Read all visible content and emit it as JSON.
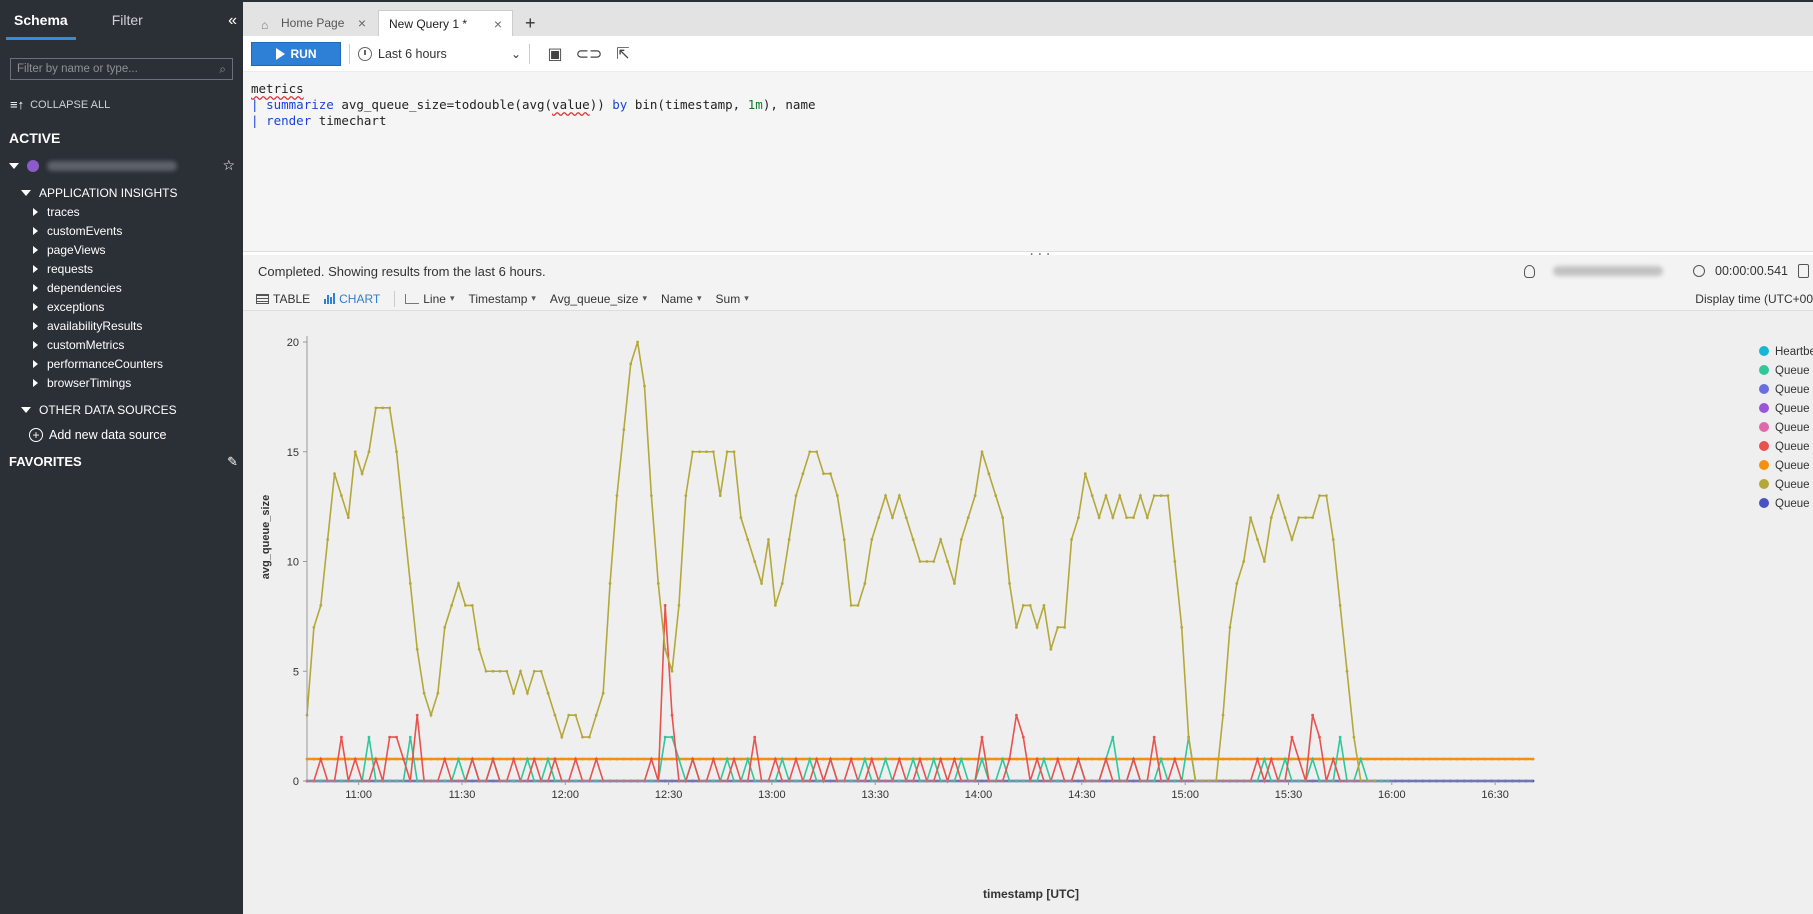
{
  "sidebar": {
    "tabs": [
      {
        "label": "Schema"
      },
      {
        "label": "Filter"
      }
    ],
    "filter_placeholder": "Filter by name or type...",
    "collapse_all": "COLLAPSE ALL",
    "active_title": "ACTIVE",
    "app_insights": "APPLICATION INSIGHTS",
    "tables": [
      "traces",
      "customEvents",
      "pageViews",
      "requests",
      "dependencies",
      "exceptions",
      "availabilityResults",
      "customMetrics",
      "performanceCounters",
      "browserTimings"
    ],
    "other_sources": "OTHER DATA SOURCES",
    "add_source": "Add new data source",
    "favorites": "FAVORITES"
  },
  "tabs": {
    "home": "Home Page",
    "query": "New Query 1 *"
  },
  "toolbar": {
    "run_label": "RUN",
    "time_range": "Last 6 hours"
  },
  "query": {
    "line1": "metrics",
    "line2_kw": "summarize",
    "line2_a": " avg_queue_size=todouble(avg(",
    "line2_value": "value",
    "line2_b": ")) ",
    "line2_by": "by",
    "line2_c": " bin(timestamp, ",
    "line2_num": "1m",
    "line2_d": "), name",
    "line3_kw": "render",
    "line3_rest": " timechart"
  },
  "status": {
    "message": "Completed. Showing results from the last 6 hours.",
    "duration": "00:00:00.541"
  },
  "result_toolbar": {
    "table": "TABLE",
    "chart": "CHART",
    "line": "Line",
    "timestamp": "Timestamp",
    "avg_queue_size": "Avg_queue_size",
    "name": "Name",
    "sum": "Sum",
    "display_time": "Display time (UTC+00"
  },
  "chart_data": {
    "type": "line",
    "xlabel": "timestamp [UTC]",
    "ylabel": "avg_queue_size",
    "ylim": [
      0,
      20
    ],
    "yticks": [
      0,
      5,
      10,
      15,
      20
    ],
    "xticks": [
      "11:00",
      "11:30",
      "12:00",
      "12:30",
      "13:00",
      "13:30",
      "14:00",
      "14:30",
      "15:00",
      "15:30",
      "16:00",
      "16:30"
    ],
    "x_range_minutes": [
      -15,
      341
    ],
    "legend": [
      {
        "name": "Heartbe",
        "color": "#17b6d6"
      },
      {
        "name": "Queue",
        "color": "#2fc89a"
      },
      {
        "name": "Queue",
        "color": "#6a6ee0"
      },
      {
        "name": "Queue",
        "color": "#9a55d8"
      },
      {
        "name": "Queue",
        "color": "#e06aa8"
      },
      {
        "name": "Queue",
        "color": "#e8524f"
      },
      {
        "name": "Queue",
        "color": "#f5900f"
      },
      {
        "name": "Queue",
        "color": "#b5a83a"
      },
      {
        "name": "Queue",
        "color": "#4a52c2"
      }
    ],
    "series": [
      {
        "name": "gold",
        "color": "#b5a83a",
        "start_minute": -15,
        "values": [
          3,
          7,
          8,
          11,
          14,
          13,
          12,
          15,
          14,
          15,
          17,
          17,
          17,
          15,
          12,
          9,
          6,
          4,
          3,
          4,
          7,
          8,
          9,
          8,
          8,
          6,
          5,
          5,
          5,
          5,
          4,
          5,
          4,
          5,
          5,
          4,
          3,
          2,
          3,
          3,
          2,
          2,
          3,
          4,
          9,
          13,
          16,
          19,
          20,
          18,
          13,
          9,
          6,
          5,
          8,
          13,
          15,
          15,
          15,
          15,
          13,
          15,
          15,
          12,
          11,
          10,
          9,
          11,
          8,
          9,
          11,
          13,
          14,
          15,
          15,
          14,
          14,
          13,
          11,
          8,
          8,
          9,
          11,
          12,
          13,
          12,
          13,
          12,
          11,
          10,
          10,
          10,
          11,
          10,
          9,
          11,
          12,
          13,
          15,
          14,
          13,
          12,
          9,
          7,
          8,
          8,
          7,
          8,
          6,
          7,
          7,
          11,
          12,
          14,
          13,
          12,
          13,
          12,
          13,
          12,
          12,
          13,
          12,
          13,
          13,
          13,
          10,
          7,
          2,
          0,
          0,
          0,
          0,
          3,
          7,
          9,
          10,
          12,
          11,
          10,
          12,
          13,
          12,
          11,
          12,
          12,
          12,
          13,
          13,
          11,
          8,
          5,
          2,
          0,
          0,
          0
        ]
      },
      {
        "name": "orange",
        "color": "#f5900f",
        "start_minute": -15,
        "constant": 1,
        "end_minute": 341
      },
      {
        "name": "red",
        "color": "#e8524f",
        "start_minute": -15,
        "values": [
          0,
          0,
          1,
          0,
          0,
          2,
          0,
          1,
          0,
          0,
          1,
          0,
          2,
          2,
          1,
          0,
          3,
          0,
          0,
          0,
          1,
          0,
          0,
          0,
          1,
          0,
          0,
          1,
          0,
          0,
          1,
          0,
          0,
          1,
          0,
          0,
          1,
          0,
          0,
          1,
          0,
          0,
          1,
          0,
          0,
          0,
          0,
          0,
          0,
          0,
          1,
          0,
          8,
          3,
          0,
          0,
          1,
          0,
          0,
          1,
          0,
          0,
          1,
          0,
          0,
          2,
          0,
          0,
          1,
          0,
          0,
          1,
          0,
          0,
          1,
          0,
          1,
          0,
          0,
          1,
          0,
          0,
          1,
          0,
          0,
          0,
          1,
          0,
          0,
          1,
          0,
          0,
          1,
          0,
          1,
          0,
          0,
          0,
          2,
          0,
          0,
          0,
          1,
          3,
          2,
          0,
          1,
          0,
          0,
          1,
          0,
          0,
          1,
          0,
          0,
          0,
          1,
          0,
          0,
          0,
          1,
          0,
          0,
          2,
          0,
          0,
          1,
          0,
          0,
          0,
          0,
          0,
          0,
          0,
          0,
          0,
          0,
          0,
          1,
          0,
          1,
          0,
          0,
          2,
          1,
          0,
          3,
          2,
          0,
          1,
          0,
          0,
          0,
          0,
          0,
          0
        ]
      },
      {
        "name": "green",
        "color": "#2fc89a",
        "start_minute": -15,
        "values": [
          0,
          0,
          0,
          0,
          0,
          0,
          0,
          0,
          0,
          2,
          0,
          0,
          0,
          0,
          0,
          2,
          0,
          0,
          0,
          0,
          0,
          0,
          1,
          0,
          1,
          0,
          0,
          1,
          0,
          0,
          0,
          0,
          1,
          0,
          0,
          1,
          0,
          0,
          0,
          0,
          0,
          0,
          0,
          0,
          0,
          0,
          0,
          0,
          0,
          0,
          0,
          0,
          2,
          2,
          1,
          0,
          1,
          0,
          0,
          0,
          0,
          1,
          0,
          0,
          1,
          0,
          0,
          0,
          0,
          1,
          0,
          0,
          0,
          1,
          0,
          0,
          1,
          0,
          0,
          0,
          0,
          1,
          0,
          0,
          1,
          0,
          0,
          0,
          1,
          0,
          0,
          1,
          0,
          0,
          0,
          1,
          0,
          0,
          1,
          0,
          0,
          1,
          0,
          0,
          0,
          0,
          0,
          1,
          0,
          0,
          0,
          0,
          1,
          0,
          0,
          0,
          1,
          2,
          0,
          0,
          1,
          0,
          0,
          0,
          1,
          0,
          0,
          0,
          2,
          0,
          0,
          0,
          0,
          0,
          0,
          0,
          0,
          0,
          0,
          1,
          0,
          0,
          1,
          0,
          0,
          0,
          1,
          0,
          0,
          0,
          2,
          0,
          0,
          1,
          0,
          0,
          0,
          0
        ]
      },
      {
        "name": "blue",
        "color": "#4a52c2",
        "start_minute": -15,
        "constant": 0,
        "end_minute": 341
      }
    ]
  }
}
